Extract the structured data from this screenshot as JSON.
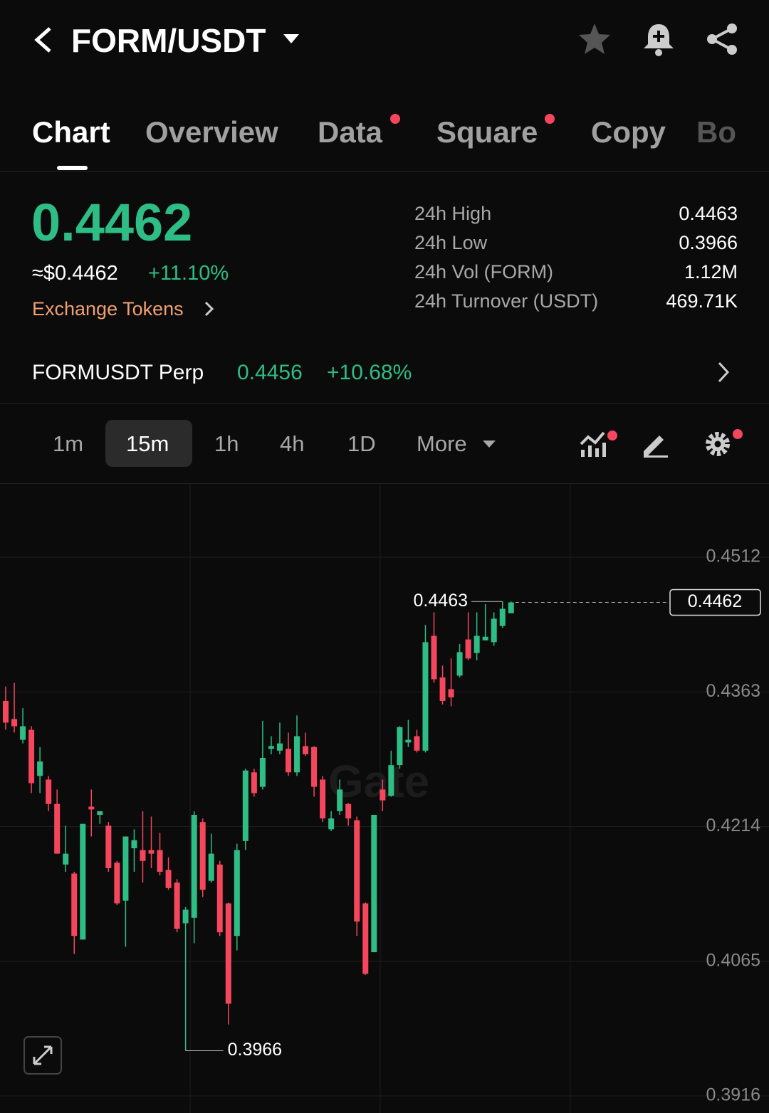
{
  "header": {
    "pair": "FORM/USDT"
  },
  "tabs": [
    "Chart",
    "Overview",
    "Data",
    "Square",
    "Copy",
    "Bo"
  ],
  "ticker": {
    "price": "0.4462",
    "usd": "≈$0.4462",
    "change": "+11.10%",
    "exchange": "Exchange Tokens"
  },
  "stats": [
    [
      "24h High",
      "0.4463"
    ],
    [
      "24h Low",
      "0.3966"
    ],
    [
      "24h Vol (FORM)",
      "1.12M"
    ],
    [
      "24h Turnover (USDT)",
      "469.71K"
    ]
  ],
  "perp": {
    "name": "FORMUSDT Perp",
    "price": "0.4456",
    "change": "+10.68%"
  },
  "intervals": [
    "1m",
    "15m",
    "1h",
    "4h",
    "1D",
    "More"
  ],
  "chart_data": {
    "type": "candlestick",
    "watermark": "Gate",
    "up_color": "#2ebd85",
    "down_color": "#f6465d",
    "ylim": [
      0.3916,
      0.4512
    ],
    "yticks": [
      0.4512,
      0.4363,
      0.4214,
      0.4065,
      0.3916
    ],
    "high": 0.4463,
    "low": 0.3966,
    "last": 0.4462,
    "candles": [
      [
        0.4353,
        0.4369,
        0.4321,
        0.4329
      ],
      [
        0.4333,
        0.4373,
        0.4318,
        0.4325
      ],
      [
        0.431,
        0.4345,
        0.4306,
        0.4325
      ],
      [
        0.4321,
        0.4325,
        0.4251,
        0.4262
      ],
      [
        0.427,
        0.4302,
        0.4251,
        0.4286
      ],
      [
        0.4266,
        0.427,
        0.4231,
        0.4239
      ],
      [
        0.4239,
        0.4255,
        0.4184,
        0.4184
      ],
      [
        0.4172,
        0.4215,
        0.4164,
        0.4184
      ],
      [
        0.4162,
        0.4164,
        0.4073,
        0.4093
      ],
      [
        0.4089,
        0.4217,
        0.4089,
        0.4217
      ],
      [
        0.4236,
        0.4255,
        0.4203,
        0.4233
      ],
      [
        0.4227,
        0.4231,
        0.4217,
        0.4231
      ],
      [
        0.4215,
        0.4219,
        0.4164,
        0.4168
      ],
      [
        0.4174,
        0.4176,
        0.4127,
        0.4129
      ],
      [
        0.4132,
        0.4203,
        0.4081,
        0.4203
      ],
      [
        0.419,
        0.4211,
        0.4164,
        0.4199
      ],
      [
        0.4188,
        0.4231,
        0.4152,
        0.4176
      ],
      [
        0.4188,
        0.4225,
        0.4168,
        0.4184
      ],
      [
        0.4188,
        0.4207,
        0.416,
        0.4164
      ],
      [
        0.4166,
        0.418,
        0.4144,
        0.4146
      ],
      [
        0.4152,
        0.4156,
        0.4097,
        0.4101
      ],
      [
        0.4107,
        0.4125,
        0.3966,
        0.4122
      ],
      [
        0.4113,
        0.4231,
        0.4085,
        0.4227
      ],
      [
        0.4219,
        0.4223,
        0.4136,
        0.4144
      ],
      [
        0.4154,
        0.4206,
        0.4152,
        0.4184
      ],
      [
        0.4172,
        0.4176,
        0.4093,
        0.4097
      ],
      [
        0.4129,
        0.413,
        0.3995,
        0.4018
      ],
      [
        0.4093,
        0.4195,
        0.4077,
        0.4188
      ],
      [
        0.4198,
        0.4278,
        0.4188,
        0.4276
      ],
      [
        0.4274,
        0.4278,
        0.4247,
        0.4251
      ],
      [
        0.4258,
        0.4331,
        0.4255,
        0.429
      ],
      [
        0.43,
        0.4314,
        0.4294,
        0.4303
      ],
      [
        0.4298,
        0.4329,
        0.4294,
        0.4306
      ],
      [
        0.43,
        0.4318,
        0.427,
        0.4274
      ],
      [
        0.4274,
        0.4337,
        0.427,
        0.4314
      ],
      [
        0.4303,
        0.4318,
        0.4292,
        0.4294
      ],
      [
        0.4302,
        0.4303,
        0.4247,
        0.4258
      ],
      [
        0.4266,
        0.427,
        0.4219,
        0.4223
      ],
      [
        0.4211,
        0.4231,
        0.4209,
        0.4223
      ],
      [
        0.4231,
        0.4266,
        0.4227,
        0.4255
      ],
      [
        0.4239,
        0.424,
        0.4215,
        0.4223
      ],
      [
        0.4221,
        0.4225,
        0.4093,
        0.4109
      ],
      [
        0.4129,
        0.413,
        0.405,
        0.4051
      ],
      [
        0.4075,
        0.4227,
        0.4075,
        0.4227
      ],
      [
        0.4255,
        0.4266,
        0.4231,
        0.4243
      ],
      [
        0.4248,
        0.4298,
        0.4247,
        0.4282
      ],
      [
        0.4282,
        0.4325,
        0.4278,
        0.4324
      ],
      [
        0.4307,
        0.4332,
        0.4302,
        0.431
      ],
      [
        0.4314,
        0.4321,
        0.4296,
        0.4298
      ],
      [
        0.4298,
        0.4437,
        0.4296,
        0.4418
      ],
      [
        0.4425,
        0.4451,
        0.4373,
        0.4377
      ],
      [
        0.4379,
        0.4392,
        0.4349,
        0.4353
      ],
      [
        0.4366,
        0.44,
        0.4347,
        0.4357
      ],
      [
        0.4381,
        0.4416,
        0.4379,
        0.4407
      ],
      [
        0.4421,
        0.4451,
        0.4398,
        0.44
      ],
      [
        0.4406,
        0.4451,
        0.4398,
        0.4425
      ],
      [
        0.442,
        0.446,
        0.442,
        0.4424
      ],
      [
        0.4418,
        0.4451,
        0.4414,
        0.4444
      ],
      [
        0.4436,
        0.4463,
        0.4434,
        0.4455
      ],
      [
        0.445,
        0.4463,
        0.445,
        0.4462
      ]
    ]
  }
}
